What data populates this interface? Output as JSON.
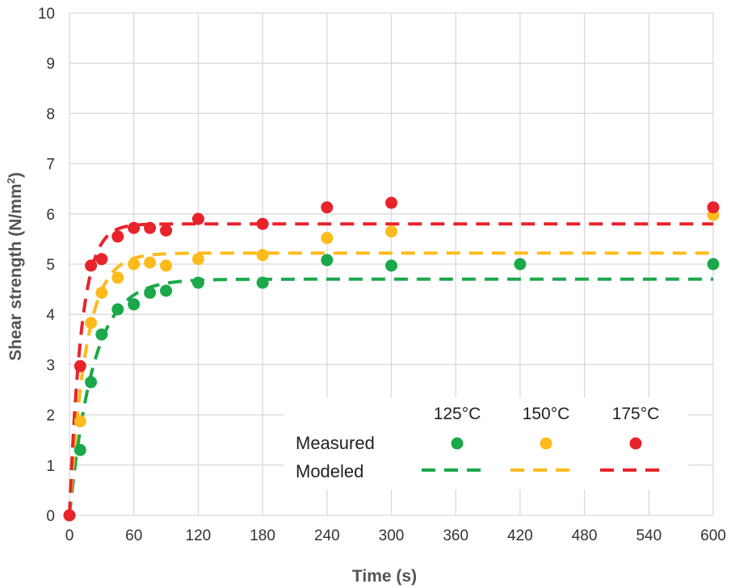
{
  "chart_data": {
    "type": "scatter",
    "xlabel": "Time (s)",
    "ylabel_main": "Shear strength (N/mm",
    "ylabel_sup": "2",
    "ylabel_close": ")",
    "xlim": [
      0,
      600
    ],
    "ylim": [
      0,
      10
    ],
    "grid": true,
    "x_ticks": [
      0,
      60,
      120,
      180,
      240,
      300,
      360,
      420,
      480,
      540,
      600
    ],
    "y_ticks": [
      0,
      1,
      2,
      3,
      4,
      5,
      6,
      7,
      8,
      9,
      10
    ],
    "legend": {
      "placement": "bottom-right",
      "row_measured": "Measured",
      "row_modeled": "Modeled"
    },
    "series": [
      {
        "name": "125°C",
        "color": "#1aa84a",
        "measured": [
          [
            0,
            0
          ],
          [
            10,
            1.3
          ],
          [
            20,
            2.65
          ],
          [
            30,
            3.6
          ],
          [
            45,
            4.1
          ],
          [
            60,
            4.2
          ],
          [
            75,
            4.43
          ],
          [
            90,
            4.47
          ],
          [
            120,
            4.63
          ],
          [
            180,
            4.63
          ],
          [
            240,
            5.08
          ],
          [
            300,
            4.97
          ],
          [
            420,
            5.0
          ],
          [
            600,
            5.0
          ]
        ],
        "model_plateau": 4.7,
        "model_rate": 0.045
      },
      {
        "name": "150°C",
        "color": "#ffbb1c",
        "measured": [
          [
            0,
            0
          ],
          [
            10,
            1.87
          ],
          [
            20,
            3.83
          ],
          [
            30,
            4.43
          ],
          [
            45,
            4.73
          ],
          [
            60,
            5.0
          ],
          [
            75,
            5.03
          ],
          [
            90,
            4.97
          ],
          [
            120,
            5.1
          ],
          [
            180,
            5.18
          ],
          [
            240,
            5.52
          ],
          [
            300,
            5.65
          ],
          [
            600,
            5.98
          ]
        ],
        "model_plateau": 5.22,
        "model_rate": 0.065
      },
      {
        "name": "175°C",
        "color": "#e8232a",
        "measured": [
          [
            0,
            0
          ],
          [
            10,
            2.97
          ],
          [
            20,
            4.97
          ],
          [
            30,
            5.1
          ],
          [
            45,
            5.55
          ],
          [
            60,
            5.72
          ],
          [
            75,
            5.72
          ],
          [
            90,
            5.67
          ],
          [
            120,
            5.9
          ],
          [
            180,
            5.8
          ],
          [
            240,
            6.13
          ],
          [
            300,
            6.22
          ],
          [
            600,
            6.13
          ]
        ],
        "model_plateau": 5.8,
        "model_rate": 0.09
      }
    ]
  }
}
